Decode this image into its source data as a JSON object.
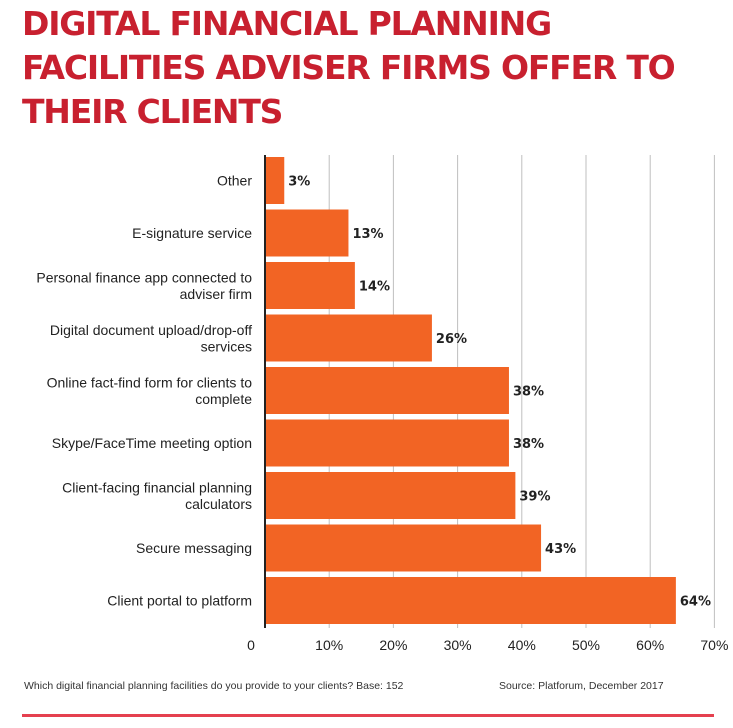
{
  "title": "DIGITAL FINANCIAL PLANNING FACILITIES ADVISER FIRMS OFFER TO THEIR CLIENTS",
  "footnote_left": "Which digital financial planning facilities do you provide to your clients? Base: 152",
  "footnote_right": "Source: Platforum, December 2017",
  "colors": {
    "title": "#c8202f",
    "bar": "#f26424",
    "rule": "#e5404f",
    "grid": "#bfbfbf"
  },
  "chart_data": {
    "type": "bar",
    "orientation": "horizontal",
    "title": "DIGITAL FINANCIAL PLANNING FACILITIES ADVISER FIRMS OFFER TO THEIR CLIENTS",
    "categories": [
      [
        "Other"
      ],
      [
        "E-signature service"
      ],
      [
        "Personal finance app connected to",
        "adviser firm"
      ],
      [
        "Digital document upload/drop-off",
        "services"
      ],
      [
        "Online fact-find form for clients to",
        "complete"
      ],
      [
        "Skype/FaceTime meeting option"
      ],
      [
        "Client-facing financial planning",
        "calculators"
      ],
      [
        "Secure messaging"
      ],
      [
        "Client portal to platform"
      ]
    ],
    "values": [
      3,
      13,
      14,
      26,
      38,
      38,
      39,
      43,
      64
    ],
    "value_labels": [
      "3%",
      "13%",
      "14%",
      "26%",
      "38%",
      "38%",
      "39%",
      "43%",
      "64%"
    ],
    "xlim": [
      0,
      70
    ],
    "xticks": [
      0,
      10,
      20,
      30,
      40,
      50,
      60,
      70
    ],
    "xtick_labels": [
      "0",
      "10%",
      "20%",
      "30%",
      "40%",
      "50%",
      "60%",
      "70%"
    ],
    "grid": true,
    "legend": false
  }
}
